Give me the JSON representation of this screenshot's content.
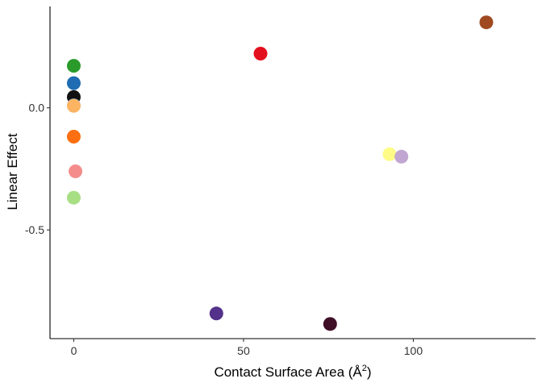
{
  "chart_data": {
    "type": "scatter",
    "title": "",
    "xlabel": "Contact Surface Area (Å",
    "xlabel_superscript": "2",
    "xlabel_suffix": ")",
    "ylabel": "Linear Effect",
    "xlim": [
      -7,
      136
    ],
    "ylim": [
      -0.945,
      0.415
    ],
    "grid": false,
    "legend": "none",
    "x_ticks": [
      0,
      50,
      100
    ],
    "x_tick_labels": [
      "0",
      "50",
      "100"
    ],
    "y_ticks": [
      0.0,
      -0.5
    ],
    "y_tick_labels": [
      "0.0",
      "-0.5"
    ],
    "points": [
      {
        "x": 0,
        "y": 0.172,
        "color": "#2a9a2a"
      },
      {
        "x": 0,
        "y": 0.101,
        "color": "#1f6cb3"
      },
      {
        "x": 0,
        "y": 0.044,
        "color": "#111111"
      },
      {
        "x": 0,
        "y": 0.01,
        "color": "#a6c8e4"
      },
      {
        "x": 0,
        "y": 0.008,
        "color": "#fcb462"
      },
      {
        "x": 0,
        "y": -0.118,
        "color": "#fd6f10"
      },
      {
        "x": 0.5,
        "y": -0.26,
        "color": "#f48c8c"
      },
      {
        "x": 0,
        "y": -0.368,
        "color": "#a8df84"
      },
      {
        "x": 42,
        "y": -0.842,
        "color": "#54318b"
      },
      {
        "x": 55,
        "y": 0.222,
        "color": "#e3101f"
      },
      {
        "x": 75.5,
        "y": -0.885,
        "color": "#3f0f27"
      },
      {
        "x": 93,
        "y": -0.19,
        "color": "#fefb87"
      },
      {
        "x": 96.5,
        "y": -0.2,
        "color": "#c1a6d1"
      },
      {
        "x": 121.5,
        "y": 0.35,
        "color": "#a04a22"
      }
    ]
  }
}
